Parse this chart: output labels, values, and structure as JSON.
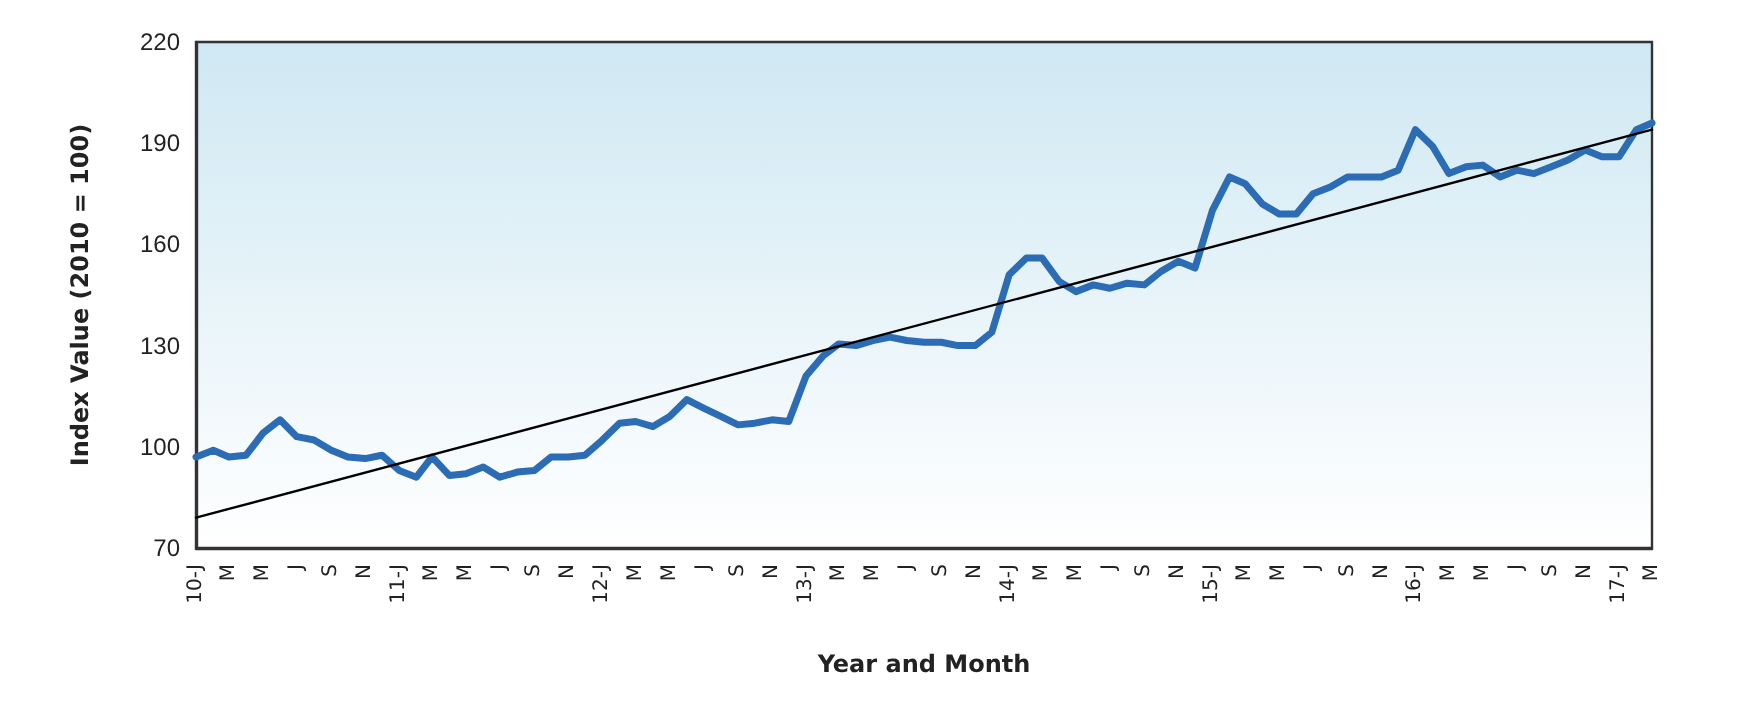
{
  "chart_data": {
    "type": "line",
    "ylabel": "Index Value (2010 = 100)",
    "xlabel": "Year and Month",
    "grid": false,
    "marker": "none",
    "line_style": "solid",
    "ylim": [
      70,
      220
    ],
    "yticks": [
      70,
      100,
      130,
      160,
      190,
      220
    ],
    "xlim": [
      "2010-01",
      "2017-03"
    ],
    "xticks": [
      {
        "value": "2010-01",
        "label": "10-J"
      },
      {
        "value": "2010-03",
        "label": "M"
      },
      {
        "value": "2010-05",
        "label": "M"
      },
      {
        "value": "2010-07",
        "label": "J"
      },
      {
        "value": "2010-09",
        "label": "S"
      },
      {
        "value": "2010-11",
        "label": "N"
      },
      {
        "value": "2011-01",
        "label": "11-J"
      },
      {
        "value": "2011-03",
        "label": "M"
      },
      {
        "value": "2011-05",
        "label": "M"
      },
      {
        "value": "2011-07",
        "label": "J"
      },
      {
        "value": "2011-09",
        "label": "S"
      },
      {
        "value": "2011-11",
        "label": "N"
      },
      {
        "value": "2012-01",
        "label": "12-J"
      },
      {
        "value": "2012-03",
        "label": "M"
      },
      {
        "value": "2012-05",
        "label": "M"
      },
      {
        "value": "2012-07",
        "label": "J"
      },
      {
        "value": "2012-09",
        "label": "S"
      },
      {
        "value": "2012-11",
        "label": "N"
      },
      {
        "value": "2013-01",
        "label": "13-J"
      },
      {
        "value": "2013-03",
        "label": "M"
      },
      {
        "value": "2013-05",
        "label": "M"
      },
      {
        "value": "2013-07",
        "label": "J"
      },
      {
        "value": "2013-09",
        "label": "S"
      },
      {
        "value": "2013-11",
        "label": "N"
      },
      {
        "value": "2014-01",
        "label": "14-J"
      },
      {
        "value": "2014-03",
        "label": "M"
      },
      {
        "value": "2014-05",
        "label": "M"
      },
      {
        "value": "2014-07",
        "label": "J"
      },
      {
        "value": "2014-09",
        "label": "S"
      },
      {
        "value": "2014-11",
        "label": "N"
      },
      {
        "value": "2015-01",
        "label": "15-J"
      },
      {
        "value": "2015-03",
        "label": "M"
      },
      {
        "value": "2015-05",
        "label": "M"
      },
      {
        "value": "2015-07",
        "label": "J"
      },
      {
        "value": "2015-09",
        "label": "S"
      },
      {
        "value": "2015-11",
        "label": "N"
      },
      {
        "value": "2016-01",
        "label": "16-J"
      },
      {
        "value": "2016-03",
        "label": "M"
      },
      {
        "value": "2016-05",
        "label": "M"
      },
      {
        "value": "2016-07",
        "label": "J"
      },
      {
        "value": "2016-09",
        "label": "S"
      },
      {
        "value": "2016-11",
        "label": "N"
      },
      {
        "value": "2017-01",
        "label": "17-J"
      },
      {
        "value": "2017-03",
        "label": "M"
      }
    ],
    "series": [
      {
        "color": "#2b6cb5",
        "x": [
          "2010-01",
          "2010-02",
          "2010-03",
          "2010-04",
          "2010-05",
          "2010-06",
          "2010-07",
          "2010-08",
          "2010-09",
          "2010-10",
          "2010-11",
          "2010-12",
          "2011-01",
          "2011-02",
          "2011-03",
          "2011-04",
          "2011-05",
          "2011-06",
          "2011-07",
          "2011-08",
          "2011-09",
          "2011-10",
          "2011-11",
          "2011-12",
          "2012-01",
          "2012-02",
          "2012-03",
          "2012-04",
          "2012-05",
          "2012-06",
          "2012-07",
          "2012-08",
          "2012-09",
          "2012-10",
          "2012-11",
          "2012-12",
          "2013-01",
          "2013-02",
          "2013-03",
          "2013-04",
          "2013-05",
          "2013-06",
          "2013-07",
          "2013-08",
          "2013-09",
          "2013-10",
          "2013-11",
          "2013-12",
          "2014-01",
          "2014-02",
          "2014-03",
          "2014-04",
          "2014-05",
          "2014-06",
          "2014-07",
          "2014-08",
          "2014-09",
          "2014-10",
          "2014-11",
          "2014-12",
          "2015-01",
          "2015-02",
          "2015-03",
          "2015-04",
          "2015-05",
          "2015-06",
          "2015-07",
          "2015-08",
          "2015-09",
          "2015-10",
          "2015-11",
          "2015-12",
          "2016-01",
          "2016-02",
          "2016-03",
          "2016-04",
          "2016-05",
          "2016-06",
          "2016-07",
          "2016-08",
          "2016-09",
          "2016-10",
          "2016-11",
          "2016-12",
          "2017-01",
          "2017-02",
          "2017-03"
        ],
        "values": [
          97,
          99,
          97,
          97.5,
          104,
          108,
          103,
          102,
          99,
          97,
          96.5,
          97.5,
          93,
          91,
          97,
          91.5,
          92,
          94,
          91,
          92.5,
          93,
          97,
          97,
          97.5,
          102,
          107,
          107.5,
          106,
          109,
          114,
          111.5,
          109,
          106.5,
          107,
          108,
          107.5,
          121,
          127,
          130.5,
          130,
          131.5,
          132.5,
          131.5,
          131,
          131,
          130,
          130,
          134,
          151,
          156,
          156,
          149,
          146,
          148,
          147,
          148.5,
          148,
          152,
          155,
          153,
          170,
          180,
          178,
          172,
          169,
          169,
          175,
          177,
          180,
          180,
          180,
          182,
          194,
          189,
          181,
          183,
          183.5,
          180,
          182,
          181,
          183,
          185,
          188,
          186,
          186,
          194,
          196
        ]
      },
      {
        "color": "#000000",
        "x": [
          "2010-01",
          "2017-03"
        ],
        "values": [
          79,
          194
        ]
      }
    ]
  }
}
